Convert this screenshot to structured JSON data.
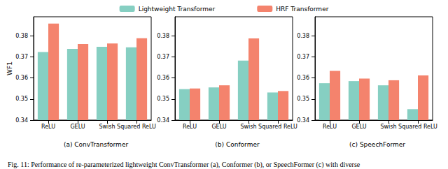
{
  "chart_data": [
    {
      "type": "bar",
      "title": "(a) ConvTransformer",
      "y_label": "WF1",
      "categories": [
        "ReLU",
        "GELU",
        "Swish",
        "Squared ReLU"
      ],
      "series": [
        {
          "name": "Lightweight Transformer",
          "color": "#86cfc2",
          "values": [
            0.3723,
            0.3738,
            0.3748,
            0.3745
          ]
        },
        {
          "name": "HRF Transformer",
          "color": "#f4836d",
          "values": [
            0.3858,
            0.3761,
            0.3763,
            0.3788
          ]
        }
      ],
      "ylim": [
        0.34,
        0.389
      ],
      "yticks": [
        0.34,
        0.35,
        0.36,
        0.37,
        0.38
      ],
      "grid": false,
      "legend": "top"
    },
    {
      "type": "bar",
      "title": "(b) Conformer",
      "categories": [
        "ReLU",
        "GELU",
        "Swish",
        "Squared ReLU"
      ],
      "series": [
        {
          "name": "Lightweight Transformer",
          "color": "#86cfc2",
          "values": [
            0.3547,
            0.3555,
            0.3682,
            0.3531
          ]
        },
        {
          "name": "HRF Transformer",
          "color": "#f4836d",
          "values": [
            0.355,
            0.3565,
            0.3787,
            0.3538
          ]
        }
      ],
      "ylim": [
        0.34,
        0.389
      ],
      "yticks": [
        0.34,
        0.35,
        0.36,
        0.37,
        0.38
      ],
      "grid": false
    },
    {
      "type": "bar",
      "title": "(c) SpeechFormer",
      "categories": [
        "ReLU",
        "GELU",
        "Swish",
        "Squared ReLU"
      ],
      "series": [
        {
          "name": "Lightweight Transformer",
          "color": "#86cfc2",
          "values": [
            0.3575,
            0.3585,
            0.3565,
            0.3452
          ]
        },
        {
          "name": "HRF Transformer",
          "color": "#f4836d",
          "values": [
            0.3633,
            0.3597,
            0.3589,
            0.3612
          ]
        }
      ],
      "ylim": [
        0.34,
        0.389
      ],
      "yticks": [
        0.34,
        0.35,
        0.36,
        0.37,
        0.38
      ],
      "grid": false
    }
  ],
  "caption": "Fig. 11: Performance of re-parameterized lightweight ConvTransformer (a), Conformer (b), or SpeechFormer (c) with diverse"
}
